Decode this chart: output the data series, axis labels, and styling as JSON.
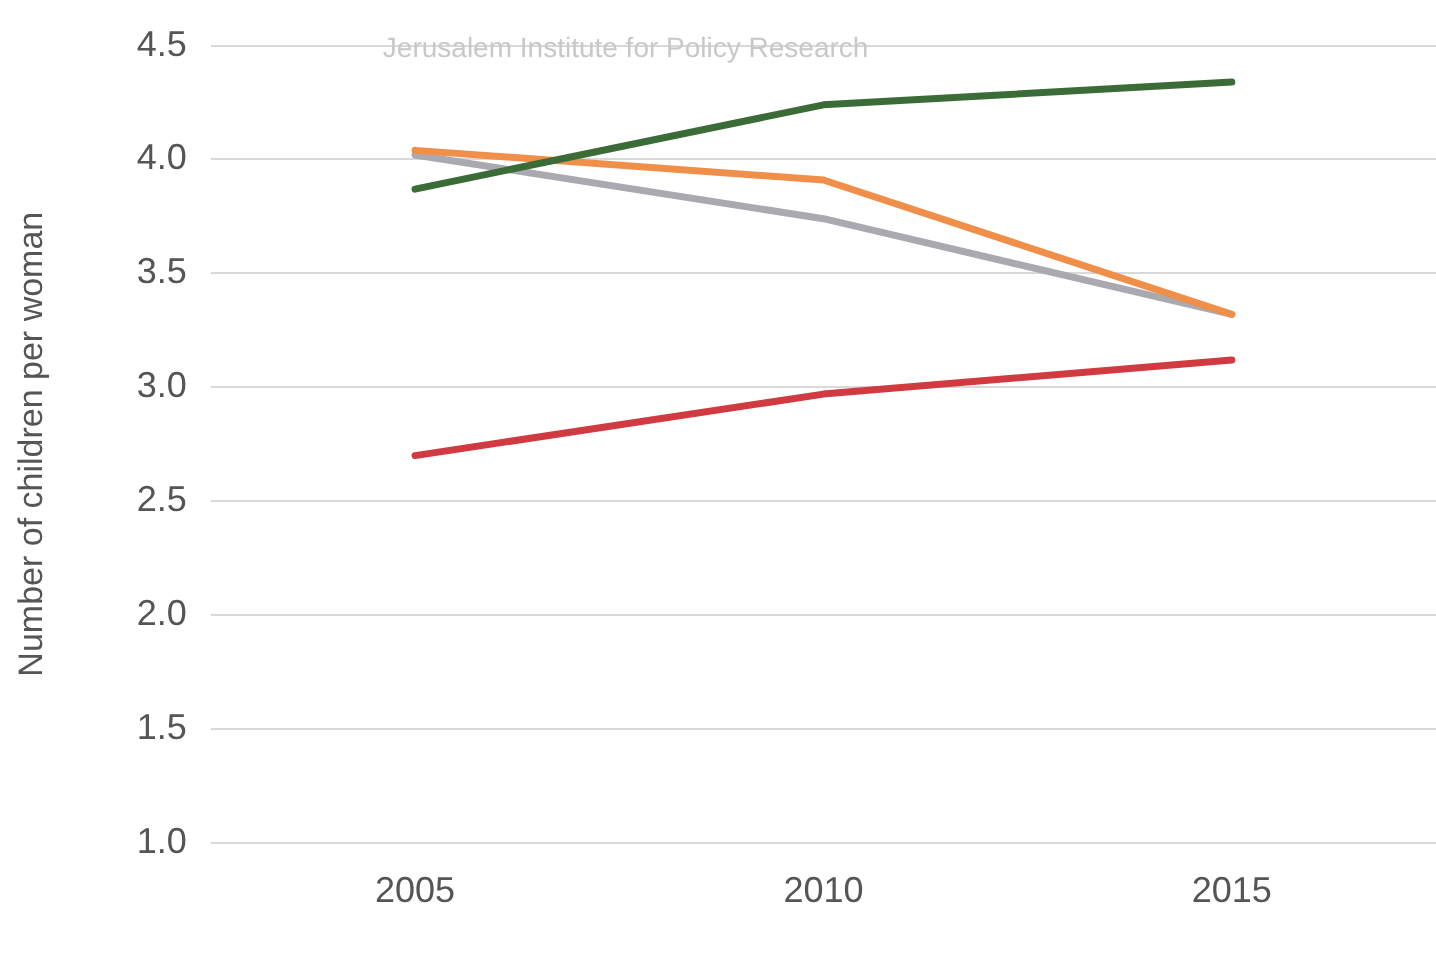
{
  "chart_data": {
    "type": "line",
    "ylabel": "Number of children per woman",
    "annotations": [
      "Jerusalem Institute for Policy Research"
    ],
    "categories": [
      "2005",
      "2010",
      "2015"
    ],
    "series": [
      {
        "color": "#3b6b36",
        "values": [
          3.87,
          4.24,
          4.34
        ]
      },
      {
        "color": "#ef8f49",
        "values": [
          4.04,
          3.91,
          3.32
        ]
      },
      {
        "color": "#aaa9b0",
        "values": [
          4.02,
          3.74,
          3.32
        ]
      },
      {
        "color": "#d03a40",
        "values": [
          2.7,
          2.97,
          3.12
        ]
      }
    ],
    "ylim": [
      1.0,
      4.5
    ],
    "yticks": [
      {
        "value": 1.0,
        "label": "1.0"
      },
      {
        "value": 1.5,
        "label": "1.5"
      },
      {
        "value": 2.0,
        "label": "2.0"
      },
      {
        "value": 2.5,
        "label": "2.5"
      },
      {
        "value": 3.0,
        "label": "3.0"
      },
      {
        "value": 3.5,
        "label": "3.5"
      },
      {
        "value": 4.0,
        "label": "4.0"
      },
      {
        "value": 4.5,
        "label": "4.5"
      }
    ],
    "grid": "y",
    "legend": false,
    "marker": "none",
    "line_style": "solid"
  }
}
